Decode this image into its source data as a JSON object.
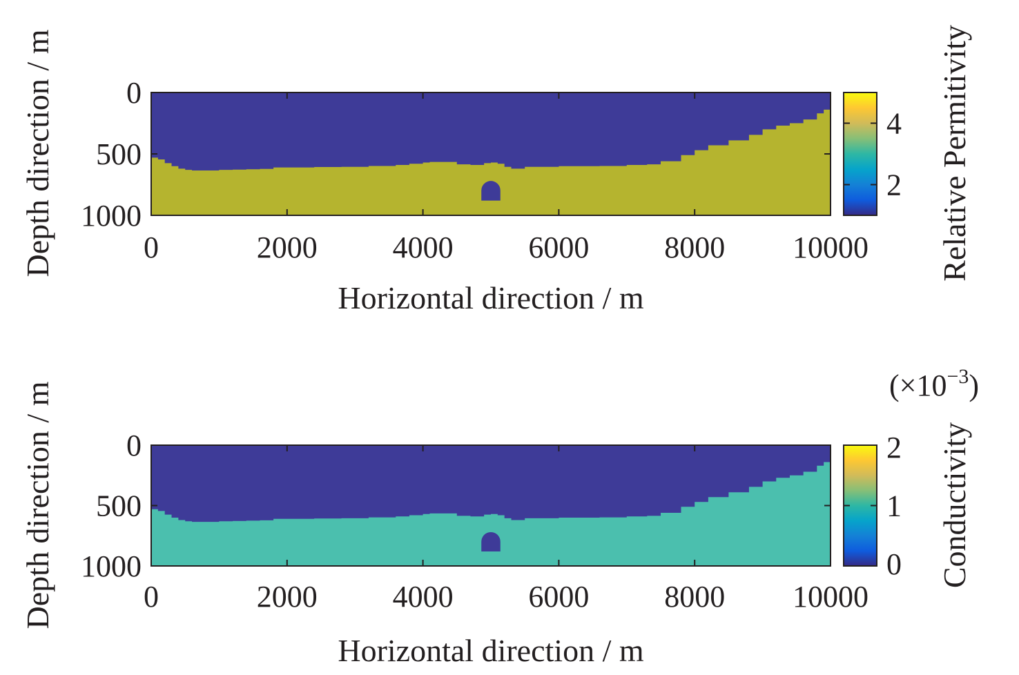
{
  "chart_data": [
    {
      "type": "heatmap",
      "title": "",
      "xlabel": "Horizontal direction / m",
      "ylabel": "Depth direction / m",
      "xlim": [
        0,
        10000
      ],
      "ylim": [
        0,
        1000
      ],
      "y_inverted": true,
      "xticks": [
        "0",
        "2000",
        "4000",
        "6000",
        "8000",
        "10000"
      ],
      "yticks": [
        "0",
        "500",
        "1000"
      ],
      "colorbar": {
        "label": "Relative Permitivity",
        "ticks": [
          "2",
          "4"
        ],
        "tick_values": [
          2,
          4
        ],
        "range": [
          1,
          5
        ],
        "multiplier": ""
      },
      "regions": [
        {
          "name": "air",
          "value": 1,
          "color": "#3e3b98"
        },
        {
          "name": "ground",
          "value": 4.6,
          "color": "#b5b42f"
        },
        {
          "name": "tunnel",
          "value": 1,
          "color": "#3e3b98"
        }
      ]
    },
    {
      "type": "heatmap",
      "title": "",
      "xlabel": "Horizontal direction / m",
      "ylabel": "Depth direction / m",
      "xlim": [
        0,
        10000
      ],
      "ylim": [
        0,
        1000
      ],
      "y_inverted": true,
      "xticks": [
        "0",
        "2000",
        "4000",
        "6000",
        "8000",
        "10000"
      ],
      "yticks": [
        "0",
        "500",
        "1000"
      ],
      "colorbar": {
        "label": "Conductivity",
        "ticks": [
          "0",
          "1",
          "2"
        ],
        "tick_values": [
          0,
          1,
          2
        ],
        "range": [
          0,
          2
        ],
        "multiplier": "(×10",
        "multiplier_exp": "−3",
        "multiplier_close": ")"
      },
      "regions": [
        {
          "name": "air",
          "value": 0,
          "color": "#3e3b98"
        },
        {
          "name": "ground",
          "value": 1.2,
          "color": "#4bbfae"
        },
        {
          "name": "tunnel",
          "value": 0,
          "color": "#3e3b98"
        }
      ]
    }
  ],
  "interface_profile": {
    "x": [
      0,
      100,
      200,
      300,
      400,
      500,
      600,
      800,
      1000,
      1200,
      1400,
      1600,
      1800,
      2000,
      2400,
      2800,
      3200,
      3600,
      3800,
      4000,
      4100,
      4300,
      4500,
      4700,
      4900,
      5000,
      5100,
      5200,
      5300,
      5500,
      6000,
      6600,
      7000,
      7300,
      7500,
      7800,
      8000,
      8200,
      8500,
      8800,
      9000,
      9200,
      9400,
      9600,
      9800,
      9900,
      10000
    ],
    "depth": [
      530,
      545,
      575,
      600,
      620,
      630,
      635,
      635,
      630,
      628,
      625,
      622,
      610,
      610,
      607,
      605,
      598,
      590,
      580,
      570,
      565,
      565,
      585,
      590,
      575,
      570,
      580,
      605,
      620,
      605,
      600,
      598,
      590,
      585,
      560,
      510,
      470,
      430,
      390,
      345,
      300,
      270,
      250,
      220,
      170,
      140,
      130
    ]
  },
  "tunnel": {
    "x_center": 5000,
    "x_halfwidth": 140,
    "top_depth": 720,
    "bottom_depth": 880
  },
  "colormap": [
    "#352a87",
    "#0f5cdd",
    "#1481d6",
    "#06a4ca",
    "#2eb7a4",
    "#87bf77",
    "#d1bb59",
    "#fec832",
    "#f9fb0e"
  ]
}
